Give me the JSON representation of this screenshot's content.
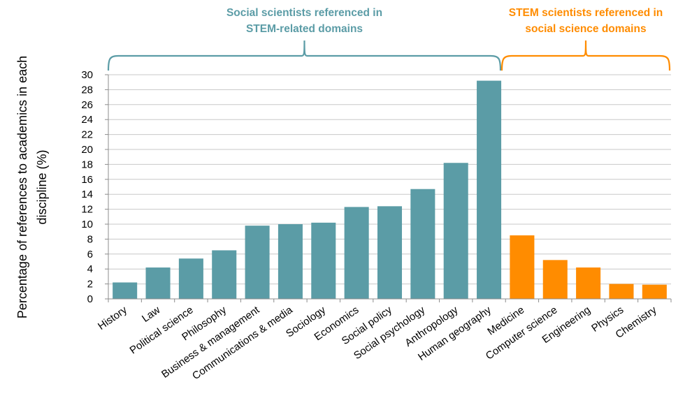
{
  "chart_data": {
    "type": "bar",
    "title": "",
    "xlabel": "",
    "ylabel_lines": [
      "Percentage of references to academics in each",
      "discipline (%)"
    ],
    "ylim": [
      0,
      30
    ],
    "yticks": [
      0,
      2,
      4,
      6,
      8,
      10,
      12,
      14,
      16,
      18,
      20,
      22,
      24,
      26,
      28,
      30
    ],
    "grid": true,
    "categories": [
      "History",
      "Law",
      "Political science",
      "Philosophy",
      "Business & management",
      "Communications & media",
      "Sociology",
      "Economics",
      "Social policy",
      "Social psychology",
      "Anthropology",
      "Human geography",
      "Medicine",
      "Computer science",
      "Engineering",
      "Physics",
      "Chemistry"
    ],
    "values": [
      2.2,
      4.2,
      5.4,
      6.5,
      9.8,
      10.0,
      10.2,
      12.3,
      12.4,
      14.7,
      18.2,
      29.2,
      8.5,
      5.2,
      4.2,
      2.0,
      1.9
    ],
    "groups": [
      {
        "label_lines": [
          "Social scientists referenced in",
          "STEM-related domains"
        ],
        "start_index": 0,
        "end_index": 11,
        "color": "#5b9ca6"
      },
      {
        "label_lines": [
          "STEM scientists referenced in",
          "social science domains"
        ],
        "start_index": 12,
        "end_index": 16,
        "color": "#ff8c00"
      }
    ]
  }
}
